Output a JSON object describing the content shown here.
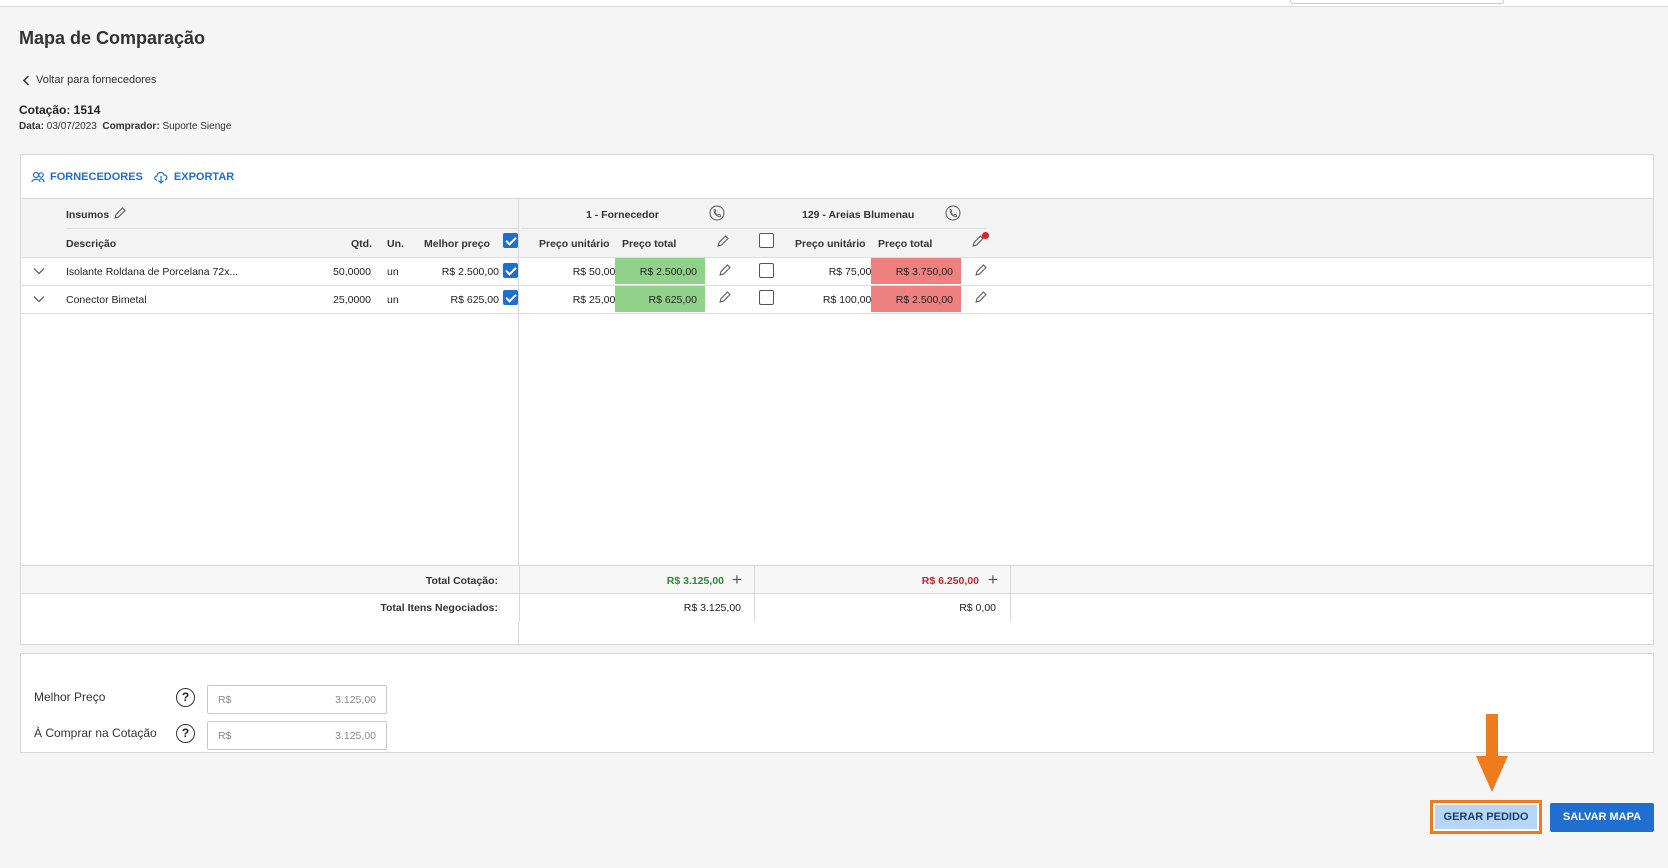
{
  "page": {
    "title": "Mapa de Comparação",
    "back_link": "Voltar para fornecedores",
    "quote_label": "Cotação: 1514",
    "date_label": "Data:",
    "date_value": "03/07/2023",
    "buyer_label": "Comprador:",
    "buyer_value": "Suporte Sienge"
  },
  "toolbar": {
    "suppliers_label": "FORNECEDORES",
    "export_label": "EXPORTAR"
  },
  "columns": {
    "insumos": "Insumos",
    "descricao": "Descrição",
    "qtd": "Qtd.",
    "un": "Un.",
    "melhor_preco": "Melhor preço",
    "preco_unitario": "Preço unitário",
    "preco_total": "Preço total"
  },
  "suppliers": [
    {
      "name": "1 - Fornecedor",
      "selected": true
    },
    {
      "name": "129 - Areias Blumenau",
      "selected": false
    }
  ],
  "rows": [
    {
      "descricao": "Isolante Roldana de Porcelana 72x...",
      "qtd": "50,0000",
      "un": "un",
      "melhor_preco": "R$ 2.500,00",
      "s1_unit": "R$ 50,0000",
      "s1_total": "R$ 2.500,00",
      "s1_checked": true,
      "s2_unit": "R$ 75,0000",
      "s2_total": "R$ 3.750,00",
      "s2_checked": false
    },
    {
      "descricao": "Conector Bimetal",
      "qtd": "25,0000",
      "un": "un",
      "melhor_preco": "R$ 625,00",
      "s1_unit": "R$ 25,0000",
      "s1_total": "R$ 625,00",
      "s1_checked": true,
      "s2_unit": "R$ 100,0000",
      "s2_total": "R$ 2.500,00",
      "s2_checked": false
    }
  ],
  "totals": {
    "total_cotacao_label": "Total Cotação:",
    "total_negociados_label": "Total Itens Negociados:",
    "s1_total_cotacao": "R$ 3.125,00",
    "s2_total_cotacao": "R$ 6.250,00",
    "s1_total_negociados": "R$ 3.125,00",
    "s2_total_negociados": "R$ 0,00"
  },
  "summary": {
    "melhor_preco_label": "Melhor Preço",
    "comprar_label": "À Comprar na Cotação",
    "currency": "R$",
    "melhor_preco_value": "3.125,00",
    "comprar_value": "3.125,00"
  },
  "actions": {
    "gerar_pedido": "GERAR PEDIDO",
    "salvar_mapa": "SALVAR MAPA"
  },
  "colors": {
    "accent": "#1f6fd1",
    "best_price_bg": "#90d28a",
    "worse_price_bg": "#ee8080",
    "total_green": "#2e8b2e",
    "total_red": "#c62828",
    "highlight": "#f07b1c"
  }
}
